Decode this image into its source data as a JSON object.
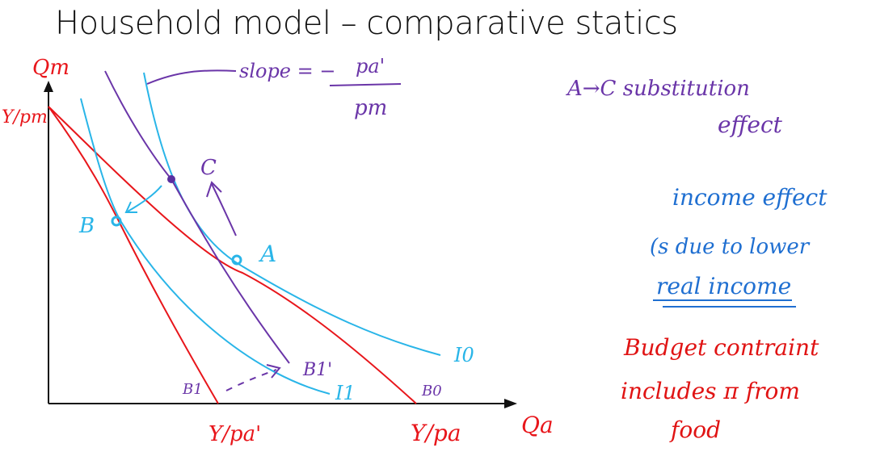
{
  "title": "Household model – comparative statics",
  "colors": {
    "axis": "#111111",
    "budget": "#e8161b",
    "indiff": "#29b5e8",
    "purple": "#6a35a8",
    "blue_note": "#1f6fd1",
    "red_note": "#e01313",
    "point_dark": "#5a2fa0",
    "point_light": "#29b5e8"
  },
  "axes": {
    "y_label": "Qm",
    "x_label": "Qa",
    "y_intercept": "Y/pm",
    "x_intercept_new": "Y/pa'",
    "x_intercept_old": "Y/pa"
  },
  "curves": {
    "I0": "I0",
    "I1": "I1",
    "B0": "B0",
    "B1": "B1",
    "B1_prime": "B1'"
  },
  "points": {
    "A": "A",
    "B": "B",
    "C": "C"
  },
  "slope_note": {
    "lhs": "slope = −",
    "num": "pa'",
    "den": "pm"
  },
  "notes": {
    "subst_1": "A→C  substitution",
    "subst_2": "effect",
    "income_1": "income effect",
    "income_2": "(s due to lower",
    "income_3": "real income",
    "budget_1": "Budget contraint",
    "budget_2": "includes π from",
    "budget_3": "food"
  }
}
